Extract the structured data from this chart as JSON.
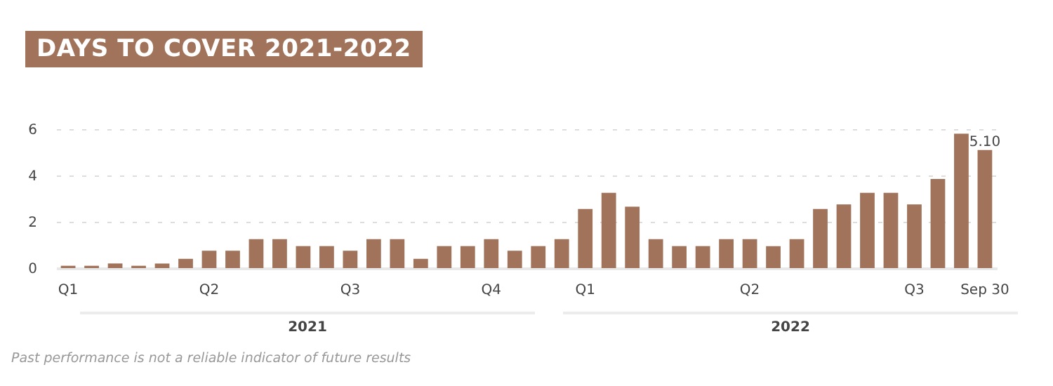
{
  "chart_data": {
    "type": "bar",
    "title": "DAYS TO COVER 2021-2022",
    "categories": [
      "Q1",
      null,
      null,
      null,
      null,
      null,
      "Q2",
      null,
      null,
      null,
      null,
      null,
      "Q3",
      null,
      null,
      null,
      null,
      null,
      "Q4",
      null,
      null,
      null,
      "Q1",
      null,
      null,
      null,
      null,
      null,
      null,
      "Q2",
      null,
      null,
      null,
      null,
      null,
      null,
      "Q3",
      null,
      null,
      "Sep 30"
    ],
    "values": [
      0.1,
      0.1,
      0.2,
      0.1,
      0.2,
      0.4,
      0.75,
      0.75,
      1.25,
      1.25,
      0.95,
      0.95,
      0.75,
      1.25,
      1.25,
      0.4,
      0.95,
      0.95,
      1.25,
      0.75,
      0.95,
      1.25,
      2.55,
      3.25,
      2.65,
      1.25,
      0.95,
      0.95,
      1.25,
      1.25,
      0.95,
      1.25,
      2.55,
      2.75,
      3.25,
      3.25,
      2.75,
      3.85,
      5.8,
      5.1
    ],
    "value_labels": [
      null,
      null,
      null,
      null,
      null,
      null,
      null,
      null,
      null,
      null,
      null,
      null,
      null,
      null,
      null,
      null,
      null,
      null,
      null,
      null,
      null,
      null,
      null,
      null,
      null,
      null,
      null,
      null,
      null,
      null,
      null,
      null,
      null,
      null,
      null,
      null,
      null,
      null,
      null,
      "5.10"
    ],
    "color": "#a0735a",
    "ylim": [
      0,
      6
    ],
    "yticks": [
      0,
      2,
      4,
      6
    ],
    "grid": "y",
    "annotations": [
      "2021",
      "2022",
      "Past performance is not a reliable indicator of future results"
    ]
  }
}
